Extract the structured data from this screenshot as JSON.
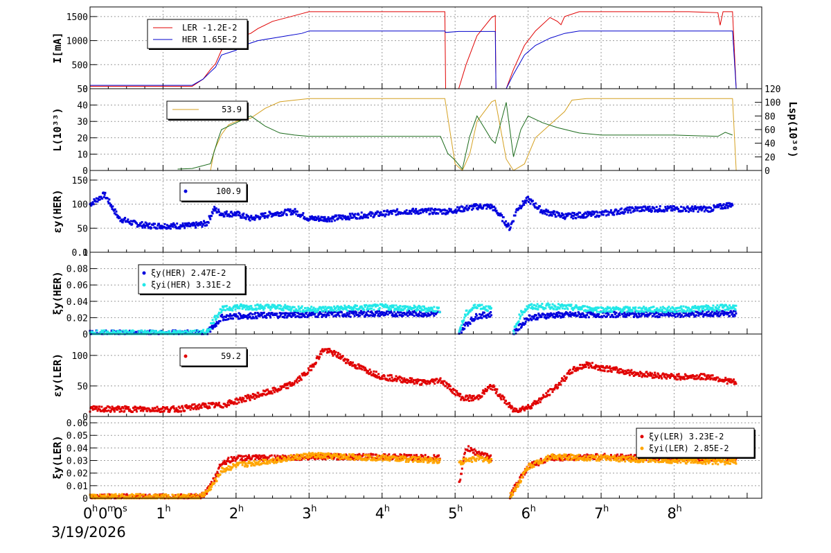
{
  "footer": {
    "date": "3/19/2026"
  },
  "x_axis": {
    "ticks": [
      {
        "v": 0,
        "main": "0",
        "sup": "h",
        "main2": "0",
        "sup2": "m",
        "main3": "0",
        "sup3": "s"
      },
      {
        "v": 1,
        "main": "1",
        "sup": "h"
      },
      {
        "v": 2,
        "main": "2",
        "sup": "h"
      },
      {
        "v": 3,
        "main": "3",
        "sup": "h"
      },
      {
        "v": 4,
        "main": "4",
        "sup": "h"
      },
      {
        "v": 5,
        "main": "5",
        "sup": "h"
      },
      {
        "v": 6,
        "main": "6",
        "sup": "h"
      },
      {
        "v": 7,
        "main": "7",
        "sup": "h"
      },
      {
        "v": 8,
        "main": "8",
        "sup": "h"
      }
    ],
    "range": [
      0,
      9.2
    ]
  },
  "chart_data": [
    {
      "type": "line",
      "ylabel": "I[mA]",
      "ylim": [
        0,
        1700
      ],
      "yticks": [
        "0",
        "500",
        "1000",
        "1500"
      ],
      "ytick_values": [
        0,
        500,
        1000,
        1500
      ],
      "grid": true,
      "legend": {
        "placement": "top-left"
      },
      "series": [
        {
          "name": "LER",
          "legend_value": "-1.2E-2",
          "color": "#e00000",
          "x": [
            0,
            1.4,
            1.55,
            1.65,
            1.72,
            1.8,
            2.0,
            2.1,
            2.2,
            2.3,
            2.5,
            2.7,
            2.9,
            3.0,
            4.5,
            4.86,
            4.87,
            5.05,
            5.15,
            5.3,
            5.5,
            5.55,
            5.56,
            5.7,
            5.8,
            5.95,
            6.1,
            6.3,
            6.4,
            6.45,
            6.5,
            6.7,
            8.2,
            8.6,
            8.63,
            8.67,
            8.8,
            8.85
          ],
          "y": [
            50,
            50,
            200,
            400,
            520,
            800,
            1000,
            1100,
            1150,
            1250,
            1400,
            1480,
            1560,
            1600,
            1600,
            1600,
            0,
            0,
            500,
            1100,
            1480,
            1520,
            0,
            0,
            400,
            900,
            1200,
            1480,
            1400,
            1330,
            1500,
            1600,
            1600,
            1580,
            1320,
            1600,
            1600,
            0
          ]
        },
        {
          "name": "HER",
          "legend_value": "1.65E-2",
          "color": "#0000cc",
          "x": [
            0,
            1.4,
            1.55,
            1.65,
            1.72,
            1.8,
            2.0,
            2.1,
            2.2,
            2.3,
            2.5,
            2.7,
            2.9,
            3.0,
            4.5,
            4.86,
            4.87,
            5.05,
            5.15,
            5.3,
            5.5,
            5.55,
            5.56,
            5.7,
            5.8,
            5.95,
            6.1,
            6.3,
            6.5,
            6.7,
            8.8,
            8.85
          ],
          "y": [
            70,
            70,
            200,
            350,
            450,
            700,
            800,
            900,
            950,
            1000,
            1050,
            1100,
            1150,
            1200,
            1200,
            1200,
            1170,
            1190,
            1190,
            1190,
            1190,
            1190,
            0,
            0,
            300,
            700,
            900,
            1050,
            1150,
            1200,
            1200,
            0
          ]
        }
      ]
    },
    {
      "type": "line",
      "ylabel": "L(10³³)",
      "ylim": [
        0,
        50
      ],
      "yticks": [
        "0",
        "10",
        "20",
        "30",
        "40",
        "50"
      ],
      "ytick_values": [
        0,
        10,
        20,
        30,
        40,
        50
      ],
      "y2label": "Lsp(10³⁰)",
      "y2lim": [
        0,
        120
      ],
      "y2ticks": [
        "0",
        "20",
        "40",
        "60",
        "80",
        "100",
        "120"
      ],
      "y2tick_values": [
        0,
        20,
        40,
        60,
        80,
        100,
        120
      ],
      "grid": true,
      "legend": {
        "placement": "top-left"
      },
      "series": [
        {
          "legend_value": "53.9",
          "color": "#d4a020",
          "axis": "left",
          "x": [
            0,
            1.65,
            1.7,
            1.8,
            1.9,
            2.0,
            2.2,
            2.4,
            2.6,
            2.8,
            3.0,
            4.8,
            4.86,
            5.0,
            5.1,
            5.2,
            5.3,
            5.5,
            5.55,
            5.7,
            5.8,
            5.95,
            6.1,
            6.3,
            6.5,
            6.6,
            6.8,
            8.8,
            8.85
          ],
          "y": [
            0,
            0,
            12,
            22,
            28,
            30,
            32,
            38,
            42,
            43,
            44,
            44,
            44,
            4,
            0,
            10,
            30,
            42,
            43,
            7,
            0,
            4,
            20,
            28,
            36,
            43,
            44,
            44,
            0
          ]
        },
        {
          "color": "#1a6a1a",
          "axis": "right",
          "x": [
            1.2,
            1.4,
            1.65,
            1.75,
            1.8,
            1.9,
            2.0,
            2.2,
            2.4,
            2.6,
            2.8,
            3.0,
            4.0,
            4.8,
            4.9,
            5.0,
            5.1,
            5.2,
            5.3,
            5.5,
            5.55,
            5.7,
            5.8,
            5.9,
            6.0,
            6.2,
            6.4,
            6.7,
            7.0,
            8.0,
            8.6,
            8.7,
            8.8
          ],
          "y": [
            2,
            3,
            10,
            45,
            60,
            65,
            70,
            80,
            65,
            55,
            52,
            50,
            50,
            50,
            25,
            15,
            2,
            50,
            80,
            45,
            40,
            100,
            20,
            60,
            80,
            70,
            63,
            55,
            52,
            52,
            50,
            56,
            52
          ]
        }
      ]
    },
    {
      "type": "scatter",
      "ylabel": "εy(HER)",
      "ylim": [
        0,
        170
      ],
      "yticks": [
        "0",
        "50",
        "100",
        "150"
      ],
      "ytick_values": [
        0,
        50,
        100,
        150
      ],
      "grid": true,
      "legend": {
        "placement": "top-left"
      },
      "series": [
        {
          "legend_value": "100.9",
          "color": "#0000dd",
          "x": [
            0,
            0.2,
            0.4,
            0.6,
            0.8,
            1.0,
            1.2,
            1.4,
            1.6,
            1.7,
            1.8,
            2.0,
            2.2,
            2.5,
            2.8,
            3.0,
            3.3,
            3.6,
            4.0,
            4.3,
            4.6,
            4.9,
            5.3,
            5.5,
            5.6,
            5.75,
            5.85,
            6.0,
            6.2,
            6.5,
            7.0,
            7.5,
            8.0,
            8.5,
            8.8
          ],
          "y": [
            100,
            120,
            70,
            60,
            55,
            55,
            55,
            55,
            60,
            90,
            80,
            80,
            70,
            80,
            85,
            70,
            70,
            75,
            80,
            85,
            85,
            85,
            95,
            95,
            80,
            50,
            90,
            110,
            85,
            75,
            80,
            90,
            90,
            90,
            100
          ]
        }
      ]
    },
    {
      "type": "scatter",
      "ylabel": "ξy(HER)",
      "ylim": [
        0,
        0.1
      ],
      "yticks": [
        "0",
        "0.02",
        "0.04",
        "0.06",
        "0.08",
        "0.1"
      ],
      "ytick_values": [
        0,
        0.02,
        0.04,
        0.06,
        0.08,
        0.1
      ],
      "grid": true,
      "legend": {
        "placement": "top-left"
      },
      "series": [
        {
          "name": "ξy(HER)",
          "legend_value": "2.47E-2",
          "color": "#0000dd",
          "x": [
            0,
            1.5,
            1.6,
            1.7,
            1.8,
            2.0,
            2.5,
            3.0,
            4.0,
            4.8,
            4.9,
            5.0,
            5.05,
            5.15,
            5.3,
            5.5,
            5.55,
            5.7,
            5.8,
            5.9,
            6.0,
            6.3,
            7.0,
            8.0,
            8.85
          ],
          "y": [
            0.001,
            0.001,
            0.001,
            0.01,
            0.02,
            0.022,
            0.023,
            0.024,
            0.025,
            0.025,
            null,
            null,
            0.001,
            0.012,
            0.022,
            0.024,
            null,
            null,
            0.001,
            0.01,
            0.02,
            0.023,
            0.024,
            0.024,
            0.025
          ]
        },
        {
          "name": "ξyi(HER)",
          "legend_value": "3.31E-2",
          "color": "#22e8e8",
          "x": [
            0,
            1.5,
            1.6,
            1.7,
            1.8,
            2.0,
            2.5,
            3.0,
            4.0,
            4.8,
            4.9,
            5.0,
            5.05,
            5.15,
            5.3,
            5.5,
            5.55,
            5.7,
            5.8,
            5.9,
            6.0,
            6.3,
            7.0,
            8.0,
            8.85
          ],
          "y": [
            0.001,
            0.001,
            0.002,
            0.018,
            0.03,
            0.033,
            0.033,
            0.03,
            0.033,
            0.03,
            null,
            null,
            0.002,
            0.025,
            0.035,
            0.03,
            null,
            null,
            0.002,
            0.025,
            0.033,
            0.034,
            0.03,
            0.03,
            0.033
          ]
        }
      ]
    },
    {
      "type": "scatter",
      "ylabel": "εy(LER)",
      "ylim": [
        0,
        135
      ],
      "yticks": [
        "0",
        "50",
        "100"
      ],
      "ytick_values": [
        0,
        50,
        100
      ],
      "grid": true,
      "legend": {
        "placement": "top-left"
      },
      "series": [
        {
          "legend_value": "59.2",
          "color": "#e00000",
          "x": [
            0,
            0.5,
            1.0,
            1.2,
            1.4,
            1.6,
            1.8,
            2.0,
            2.3,
            2.6,
            2.8,
            3.0,
            3.2,
            3.4,
            3.6,
            3.8,
            4.0,
            4.3,
            4.6,
            4.8,
            5.1,
            5.3,
            5.5,
            5.8,
            6.0,
            6.2,
            6.4,
            6.6,
            6.8,
            7.0,
            7.5,
            8.0,
            8.5,
            8.85
          ],
          "y": [
            12,
            12,
            12,
            12,
            15,
            18,
            18,
            25,
            35,
            45,
            55,
            75,
            110,
            100,
            85,
            75,
            65,
            60,
            55,
            60,
            30,
            30,
            50,
            10,
            15,
            30,
            50,
            75,
            85,
            80,
            70,
            65,
            65,
            55
          ]
        }
      ]
    },
    {
      "type": "scatter",
      "ylabel": "ξy(LER)",
      "ylim": [
        0,
        0.065
      ],
      "yticks": [
        "0",
        "0.01",
        "0.02",
        "0.03",
        "0.04",
        "0.05",
        "0.06"
      ],
      "ytick_values": [
        0,
        0.01,
        0.02,
        0.03,
        0.04,
        0.05,
        0.06
      ],
      "grid": true,
      "legend": {
        "placement": "top-right"
      },
      "series": [
        {
          "name": "ξy(LER)",
          "legend_value": "3.23E-2",
          "color": "#e00000",
          "x": [
            0,
            1.5,
            1.6,
            1.7,
            1.8,
            2.0,
            2.5,
            3.0,
            4.0,
            4.8,
            4.9,
            5.05,
            5.15,
            5.3,
            5.5,
            5.55,
            5.75,
            5.85,
            6.0,
            6.3,
            7.0,
            8.0,
            8.85
          ],
          "y": [
            0.001,
            0.001,
            0.005,
            0.015,
            0.028,
            0.032,
            0.032,
            0.033,
            0.033,
            0.032,
            null,
            0.01,
            0.04,
            0.036,
            0.032,
            null,
            0.001,
            0.012,
            0.025,
            0.032,
            0.033,
            0.032,
            0.032
          ]
        },
        {
          "name": "ξyi(LER)",
          "legend_value": "2.85E-2",
          "color": "#ffa500",
          "x": [
            0,
            1.5,
            1.6,
            1.7,
            1.8,
            2.0,
            2.5,
            3.0,
            4.0,
            4.8,
            4.9,
            5.05,
            5.15,
            5.3,
            5.5,
            5.55,
            5.75,
            5.85,
            6.0,
            6.3,
            7.0,
            8.0,
            8.85
          ],
          "y": [
            0.001,
            0.001,
            0.005,
            0.012,
            0.022,
            0.026,
            0.03,
            0.034,
            0.032,
            0.03,
            null,
            0.028,
            0.03,
            0.032,
            0.03,
            null,
            0.001,
            0.01,
            0.025,
            0.033,
            0.032,
            0.03,
            0.029
          ]
        }
      ]
    }
  ]
}
